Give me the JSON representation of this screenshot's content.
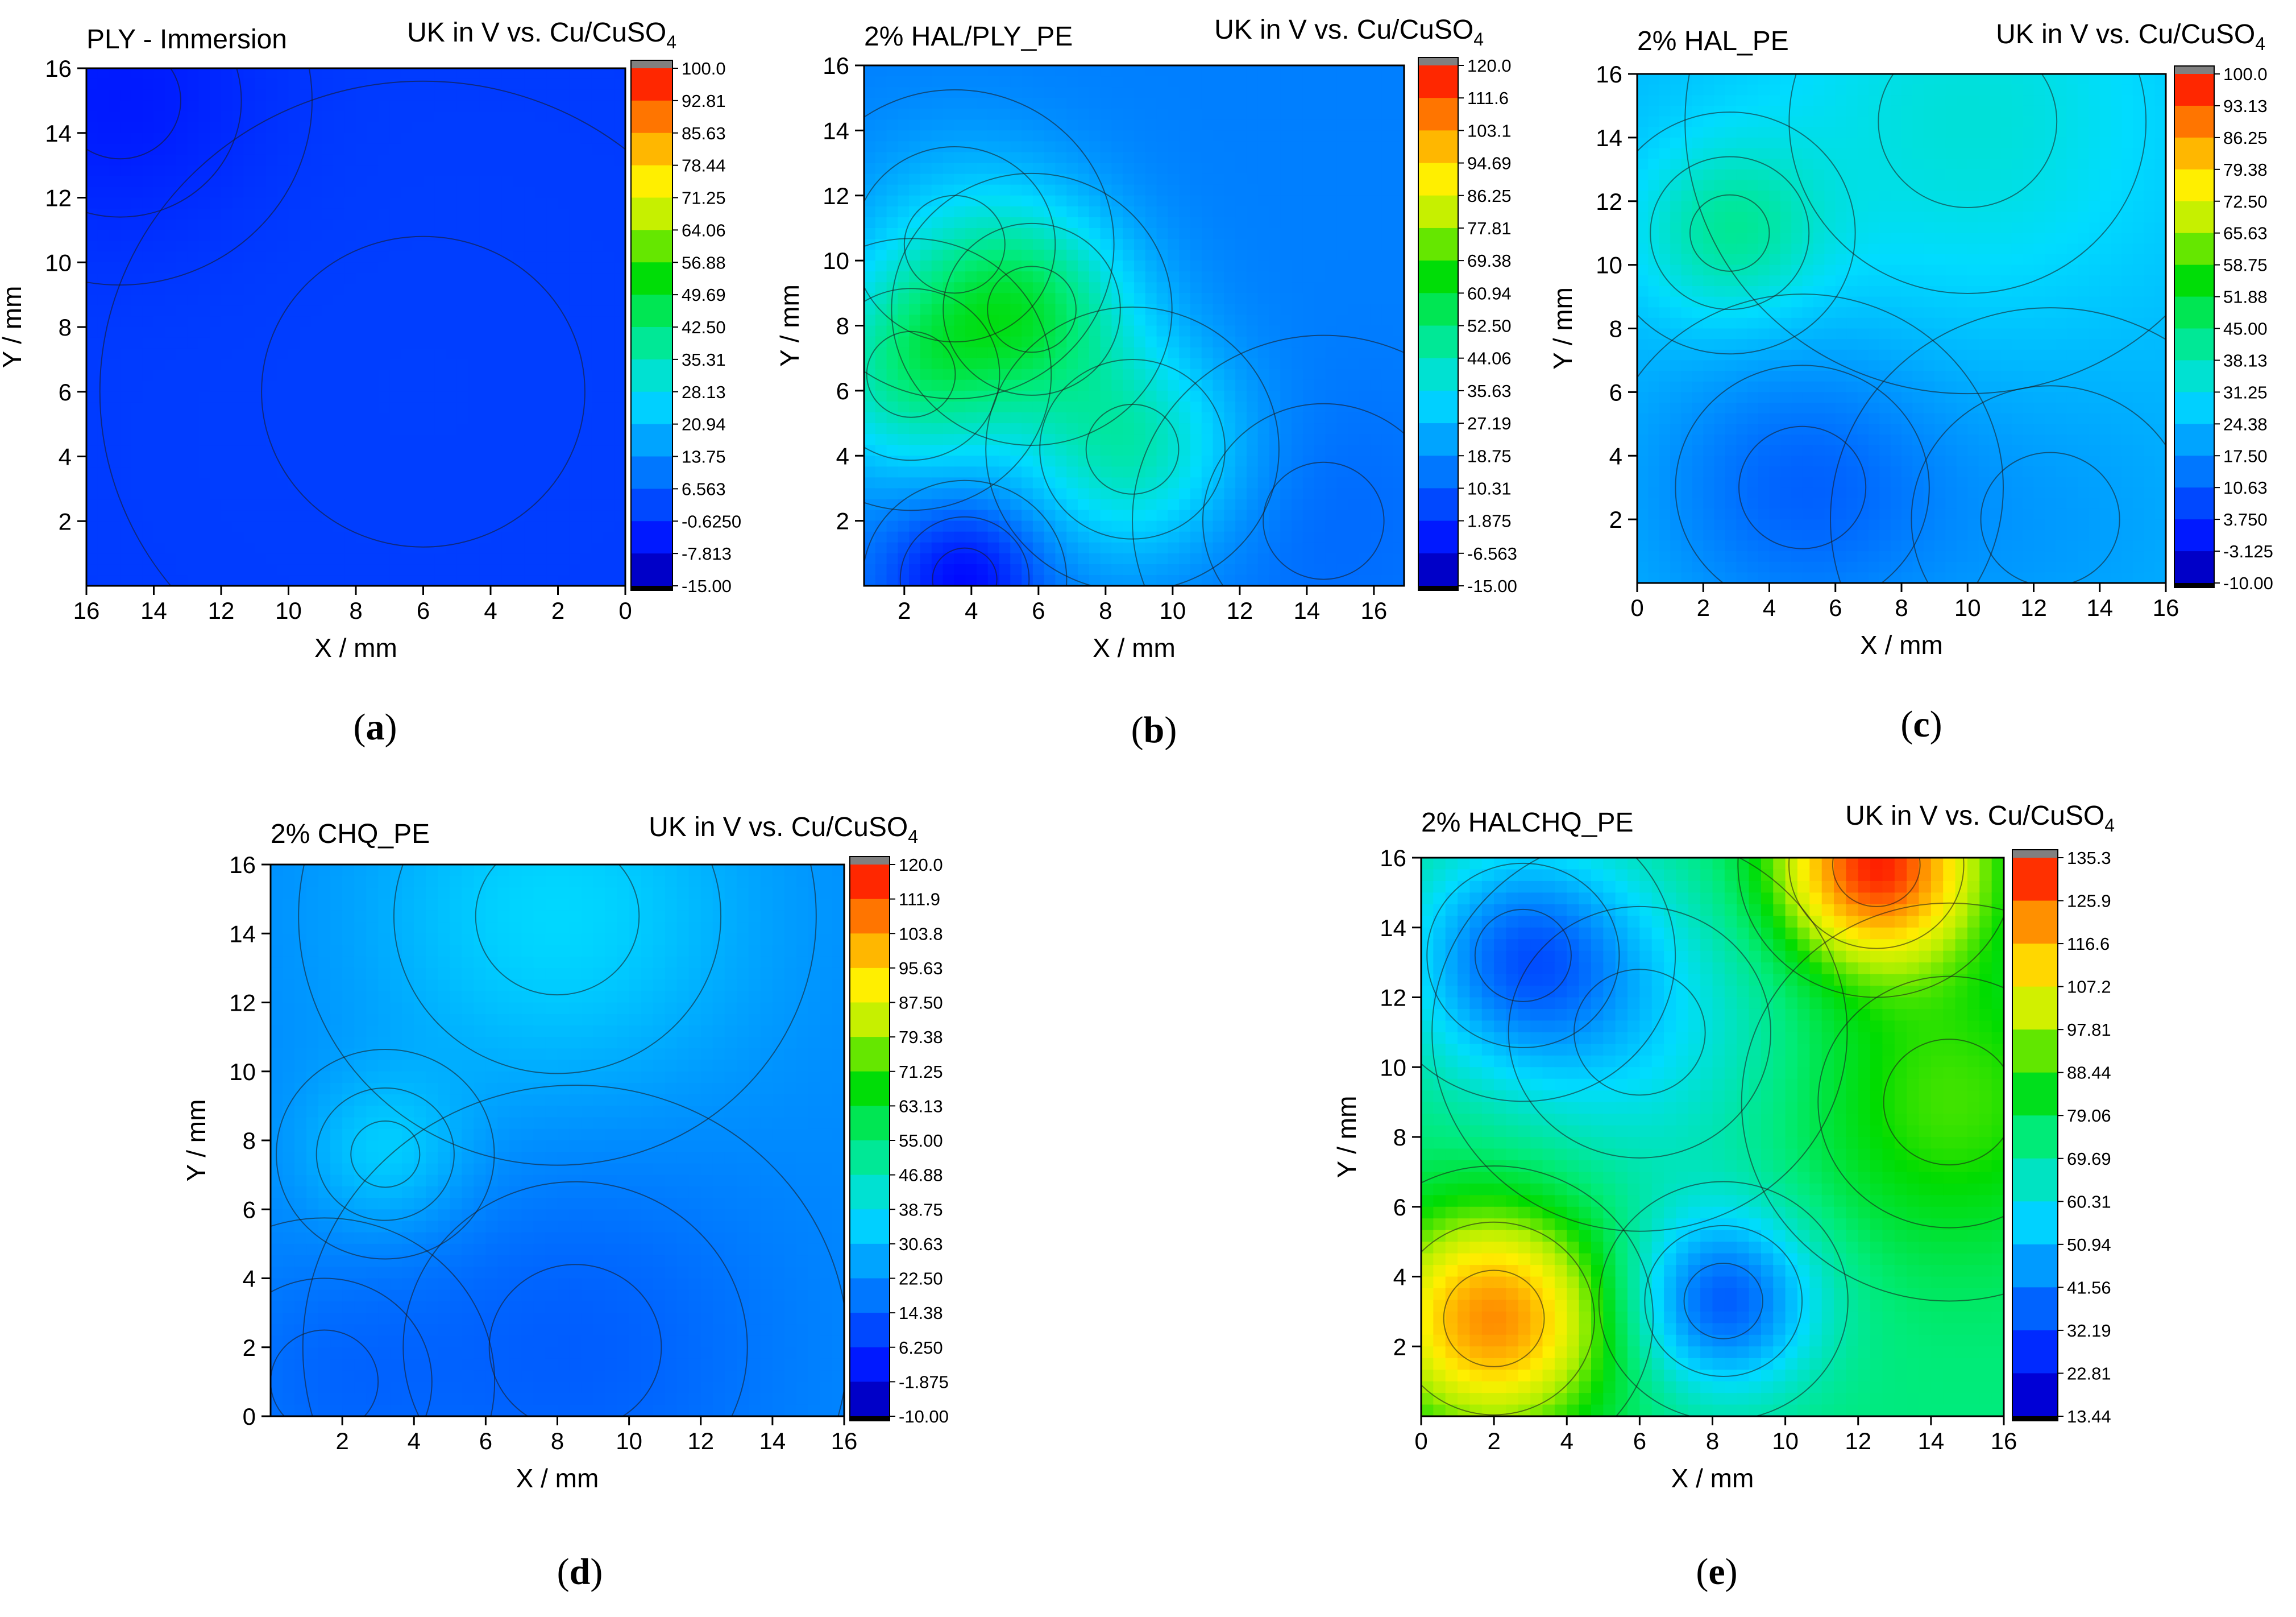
{
  "figure": {
    "panels": [
      {
        "id": "a",
        "caption": "a",
        "title": "PLY -  Immersion",
        "cbar_title": "UK in V vs. Cu/CuSO",
        "cbar_sub": "4",
        "x_label": "X / mm",
        "y_label": "Y / mm",
        "x_ticks": [
          "16",
          "14",
          "12",
          "10",
          "8",
          "6",
          "4",
          "2",
          "0"
        ],
        "y_ticks": [
          "2",
          "4",
          "6",
          "8",
          "10",
          "12",
          "14",
          "16"
        ],
        "cbar_ticks": [
          "100.0",
          "92.81",
          "85.63",
          "78.44",
          "71.25",
          "64.06",
          "56.88",
          "49.69",
          "42.50",
          "35.31",
          "28.13",
          "20.94",
          "13.75",
          "6.563",
          "-0.6250",
          "-7.813",
          "-15.00"
        ]
      },
      {
        "id": "b",
        "caption": "b",
        "title": "2% HAL/PLY_PE",
        "cbar_title": "UK in V vs. Cu/CuSO",
        "cbar_sub": "4",
        "x_label": "X / mm",
        "y_label": "Y / mm",
        "x_ticks": [
          "2",
          "4",
          "6",
          "8",
          "10",
          "12",
          "14",
          "16"
        ],
        "y_ticks": [
          "2",
          "4",
          "6",
          "8",
          "10",
          "12",
          "14",
          "16"
        ],
        "cbar_ticks": [
          "120.0",
          "111.6",
          "103.1",
          "94.69",
          "86.25",
          "77.81",
          "69.38",
          "60.94",
          "52.50",
          "44.06",
          "35.63",
          "27.19",
          "18.75",
          "10.31",
          "1.875",
          "-6.563",
          "-15.00"
        ]
      },
      {
        "id": "c",
        "caption": "c",
        "title": "2% HAL_PE",
        "cbar_title": "UK in V vs. Cu/CuSO",
        "cbar_sub": "4",
        "x_label": "X / mm",
        "y_label": "Y / mm",
        "x_ticks": [
          "0",
          "2",
          "4",
          "6",
          "8",
          "10",
          "12",
          "14",
          "16"
        ],
        "y_ticks": [
          "2",
          "4",
          "6",
          "8",
          "10",
          "12",
          "14",
          "16"
        ],
        "cbar_ticks": [
          "100.0",
          "93.13",
          "86.25",
          "79.38",
          "72.50",
          "65.63",
          "58.75",
          "51.88",
          "45.00",
          "38.13",
          "31.25",
          "24.38",
          "17.50",
          "10.63",
          "3.750",
          "-3.125",
          "-10.00"
        ]
      },
      {
        "id": "d",
        "caption": "d",
        "title": "2% CHQ_PE",
        "cbar_title": "UK in V vs. Cu/CuSO",
        "cbar_sub": "4",
        "x_label": "X / mm",
        "y_label": "Y / mm",
        "x_ticks": [
          "2",
          "4",
          "6",
          "8",
          "10",
          "12",
          "14",
          "16"
        ],
        "y_ticks": [
          "0",
          "2",
          "4",
          "6",
          "8",
          "10",
          "12",
          "14",
          "16"
        ],
        "cbar_ticks": [
          "120.0",
          "111.9",
          "103.8",
          "95.63",
          "87.50",
          "79.38",
          "71.25",
          "63.13",
          "55.00",
          "46.88",
          "38.75",
          "30.63",
          "22.50",
          "14.38",
          "6.250",
          "-1.875",
          "-10.00"
        ]
      },
      {
        "id": "e",
        "caption": "e",
        "title": "2% HALCHQ_PE",
        "cbar_title": "UK in V vs. Cu/CuSO",
        "cbar_sub": "4",
        "x_label": "X / mm",
        "y_label": "Y / mm",
        "x_ticks": [
          "0",
          "2",
          "4",
          "6",
          "8",
          "10",
          "12",
          "14",
          "16"
        ],
        "y_ticks": [
          "2",
          "4",
          "6",
          "8",
          "10",
          "12",
          "14",
          "16"
        ],
        "cbar_ticks": [
          "135.3",
          "125.9",
          "116.6",
          "107.2",
          "97.81",
          "88.44",
          "79.06",
          "69.69",
          "60.31",
          "50.94",
          "41.56",
          "32.19",
          "22.81",
          "13.44"
        ]
      }
    ]
  },
  "chart_data": [
    {
      "type": "heatmap",
      "panel": "a",
      "title": "PLY -  Immersion",
      "colorbar_label": "UK in V vs. Cu/CuSO4",
      "xlabel": "X / mm",
      "ylabel": "Y / mm",
      "xlim": [
        16,
        0
      ],
      "ylim": [
        0,
        16
      ],
      "zlim": [
        -15.0,
        100.0
      ],
      "description_of_field": "nearly uniform potential around 0 V over the whole area, slightly lower at the top-left corner",
      "features": [
        {
          "x": 15.0,
          "y": 15.0,
          "value": -5.0,
          "sigma": 3.0
        },
        {
          "x": 6.0,
          "y": 6.0,
          "value": 1.0,
          "sigma": 8.0
        }
      ],
      "base_value": 0.5
    },
    {
      "type": "heatmap",
      "panel": "b",
      "title": "2% HAL/PLY_PE",
      "colorbar_label": "UK in V vs. Cu/CuSO4",
      "xlabel": "X / mm",
      "ylabel": "Y / mm",
      "xlim": [
        0.8,
        16.9
      ],
      "ylim": [
        0,
        16
      ],
      "zlim": [
        -15.0,
        120.0
      ],
      "features": [
        {
          "x": 5.8,
          "y": 8.5,
          "value": 32.0,
          "sigma": 2.2
        },
        {
          "x": 2.2,
          "y": 6.5,
          "value": 30.0,
          "sigma": 2.2
        },
        {
          "x": 8.8,
          "y": 4.2,
          "value": 28.0,
          "sigma": 2.3
        },
        {
          "x": 3.5,
          "y": 10.5,
          "value": 12.0,
          "sigma": 2.5
        },
        {
          "x": 3.8,
          "y": 0.2,
          "value": -22.0,
          "sigma": 1.6
        },
        {
          "x": 14.5,
          "y": 2.0,
          "value": -4.0,
          "sigma": 3.0
        }
      ],
      "base_value": 16.0
    },
    {
      "type": "heatmap",
      "panel": "c",
      "title": "2% HAL_PE",
      "colorbar_label": "UK in V vs. Cu/CuSO4",
      "xlabel": "X / mm",
      "ylabel": "Y / mm",
      "xlim": [
        0,
        16
      ],
      "ylim": [
        0,
        16
      ],
      "zlim": [
        -10.0,
        100.0
      ],
      "features": [
        {
          "x": 2.8,
          "y": 11.0,
          "value": 16.0,
          "sigma": 2.0
        },
        {
          "x": 10.0,
          "y": 14.5,
          "value": 10.0,
          "sigma": 4.5
        },
        {
          "x": 5.0,
          "y": 3.0,
          "value": -13.0,
          "sigma": 3.2
        },
        {
          "x": 12.5,
          "y": 2.0,
          "value": -4.0,
          "sigma": 3.5
        }
      ],
      "base_value": 24.0
    },
    {
      "type": "heatmap",
      "panel": "d",
      "title": "2% CHQ_PE",
      "colorbar_label": "UK in V vs. Cu/CuSO4",
      "xlabel": "X / mm",
      "ylabel": "Y / mm",
      "xlim": [
        0,
        16
      ],
      "ylim": [
        0,
        16
      ],
      "zlim": [
        -10.0,
        120.0
      ],
      "features": [
        {
          "x": 8.0,
          "y": 14.5,
          "value": 14.0,
          "sigma": 3.8
        },
        {
          "x": 3.2,
          "y": 7.6,
          "value": 12.0,
          "sigma": 1.6
        },
        {
          "x": 8.5,
          "y": 2.0,
          "value": -8.0,
          "sigma": 4.0
        },
        {
          "x": 1.5,
          "y": 1.0,
          "value": -5.0,
          "sigma": 2.5
        }
      ],
      "base_value": 22.0
    },
    {
      "type": "heatmap",
      "panel": "e",
      "title": "2% HALCHQ_PE",
      "colorbar_label": "UK in V vs. Cu/CuSO4",
      "xlabel": "X / mm",
      "ylabel": "Y / mm",
      "xlim": [
        0,
        16
      ],
      "ylim": [
        0,
        16
      ],
      "zlim": [
        13.44,
        140.0
      ],
      "features": [
        {
          "x": 2.0,
          "y": 2.8,
          "value": 50.0,
          "sigma": 2.3
        },
        {
          "x": 12.5,
          "y": 15.8,
          "value": 60.0,
          "sigma": 2.0
        },
        {
          "x": 14.5,
          "y": 9.0,
          "value": 18.0,
          "sigma": 3.0
        },
        {
          "x": 8.3,
          "y": 3.3,
          "value": -40.0,
          "sigma": 1.8
        },
        {
          "x": 2.8,
          "y": 13.2,
          "value": -35.0,
          "sigma": 2.2
        },
        {
          "x": 6.0,
          "y": 11.0,
          "value": -15.0,
          "sigma": 3.0
        }
      ],
      "base_value": 76.0
    }
  ]
}
